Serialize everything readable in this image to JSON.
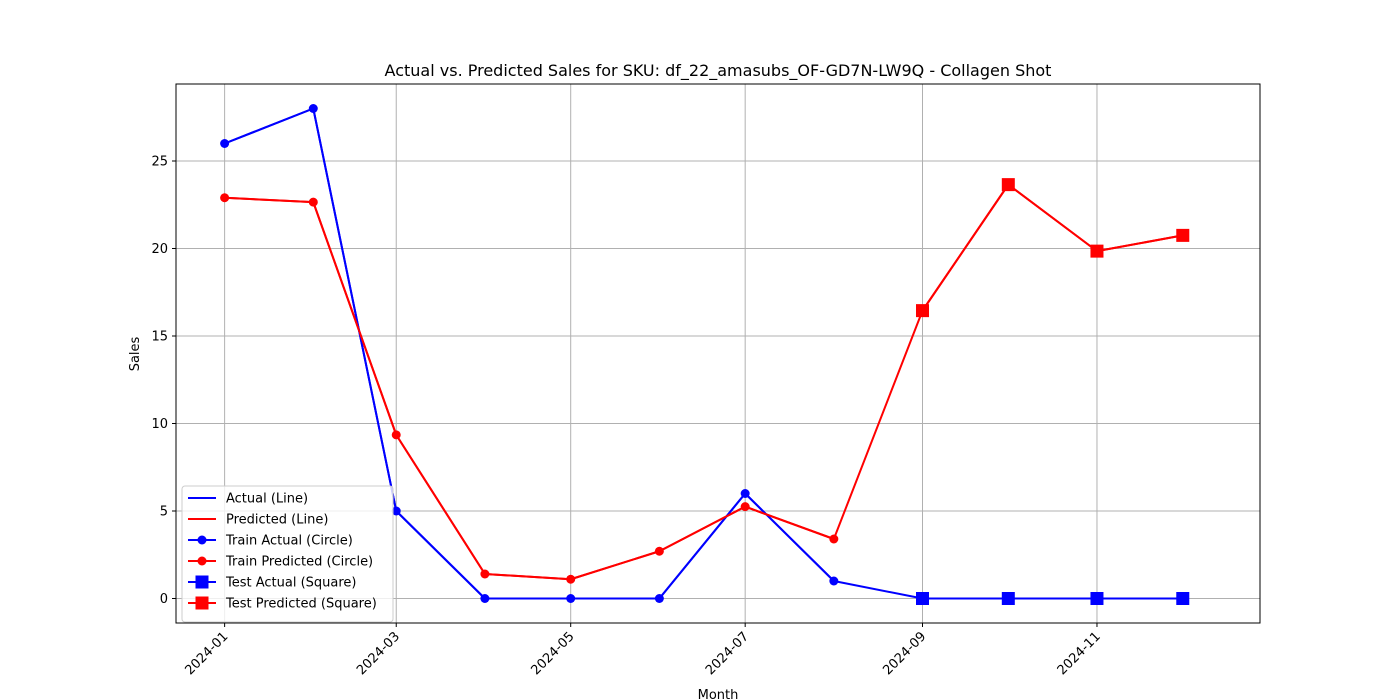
{
  "chart_data": {
    "type": "line",
    "title": "Actual vs. Predicted Sales for SKU: df_22_amasubs_OF-GD7N-LW9Q - Collagen Shot",
    "xlabel": "Month",
    "ylabel": "Sales",
    "x": [
      "2024-01",
      "2024-02",
      "2024-03",
      "2024-04",
      "2024-05",
      "2024-06",
      "2024-07",
      "2024-08",
      "2024-09",
      "2024-10",
      "2024-11",
      "2024-12"
    ],
    "x_ticks": [
      "2024-01",
      "2024-03",
      "2024-05",
      "2024-07",
      "2024-09",
      "2024-11"
    ],
    "y_ticks": [
      0,
      5,
      10,
      15,
      20,
      25
    ],
    "ylim": [
      -1.4,
      29.4
    ],
    "xlim": [
      "2023-12-15",
      "2024-12-28"
    ],
    "grid": true,
    "legend_position": "lower-left",
    "colors": {
      "actual": "#0000ff",
      "predicted": "#ff0000"
    },
    "series": [
      {
        "name": "Actual (Line)",
        "kind": "line",
        "color": "#0000ff",
        "x": [
          "2024-01",
          "2024-02",
          "2024-03",
          "2024-04",
          "2024-05",
          "2024-06",
          "2024-07",
          "2024-08",
          "2024-09",
          "2024-10",
          "2024-11",
          "2024-12"
        ],
        "values": [
          26,
          28,
          5,
          0,
          0,
          0,
          6,
          1,
          0,
          0,
          0,
          0
        ]
      },
      {
        "name": "Predicted (Line)",
        "kind": "line",
        "color": "#ff0000",
        "x": [
          "2024-01",
          "2024-02",
          "2024-03",
          "2024-04",
          "2024-05",
          "2024-06",
          "2024-07",
          "2024-08",
          "2024-09",
          "2024-10",
          "2024-11",
          "2024-12"
        ],
        "values": [
          22.9,
          22.65,
          9.35,
          1.4,
          1.1,
          2.7,
          5.25,
          3.4,
          16.45,
          23.65,
          19.85,
          20.75
        ]
      },
      {
        "name": "Train Actual (Circle)",
        "kind": "circle",
        "color": "#0000ff",
        "x": [
          "2024-01",
          "2024-02",
          "2024-03",
          "2024-04",
          "2024-05",
          "2024-06",
          "2024-07",
          "2024-08"
        ],
        "values": [
          26,
          28,
          5,
          0,
          0,
          0,
          6,
          1
        ]
      },
      {
        "name": "Train Predicted (Circle)",
        "kind": "circle",
        "color": "#ff0000",
        "x": [
          "2024-01",
          "2024-02",
          "2024-03",
          "2024-04",
          "2024-05",
          "2024-06",
          "2024-07",
          "2024-08"
        ],
        "values": [
          22.9,
          22.65,
          9.35,
          1.4,
          1.1,
          2.7,
          5.25,
          3.4
        ]
      },
      {
        "name": "Test Actual (Square)",
        "kind": "square",
        "color": "#0000ff",
        "x": [
          "2024-09",
          "2024-10",
          "2024-11",
          "2024-12"
        ],
        "values": [
          0,
          0,
          0,
          0
        ]
      },
      {
        "name": "Test Predicted (Square)",
        "kind": "square",
        "color": "#ff0000",
        "x": [
          "2024-09",
          "2024-10",
          "2024-11",
          "2024-12"
        ],
        "values": [
          16.45,
          23.65,
          19.85,
          20.75
        ]
      }
    ]
  }
}
